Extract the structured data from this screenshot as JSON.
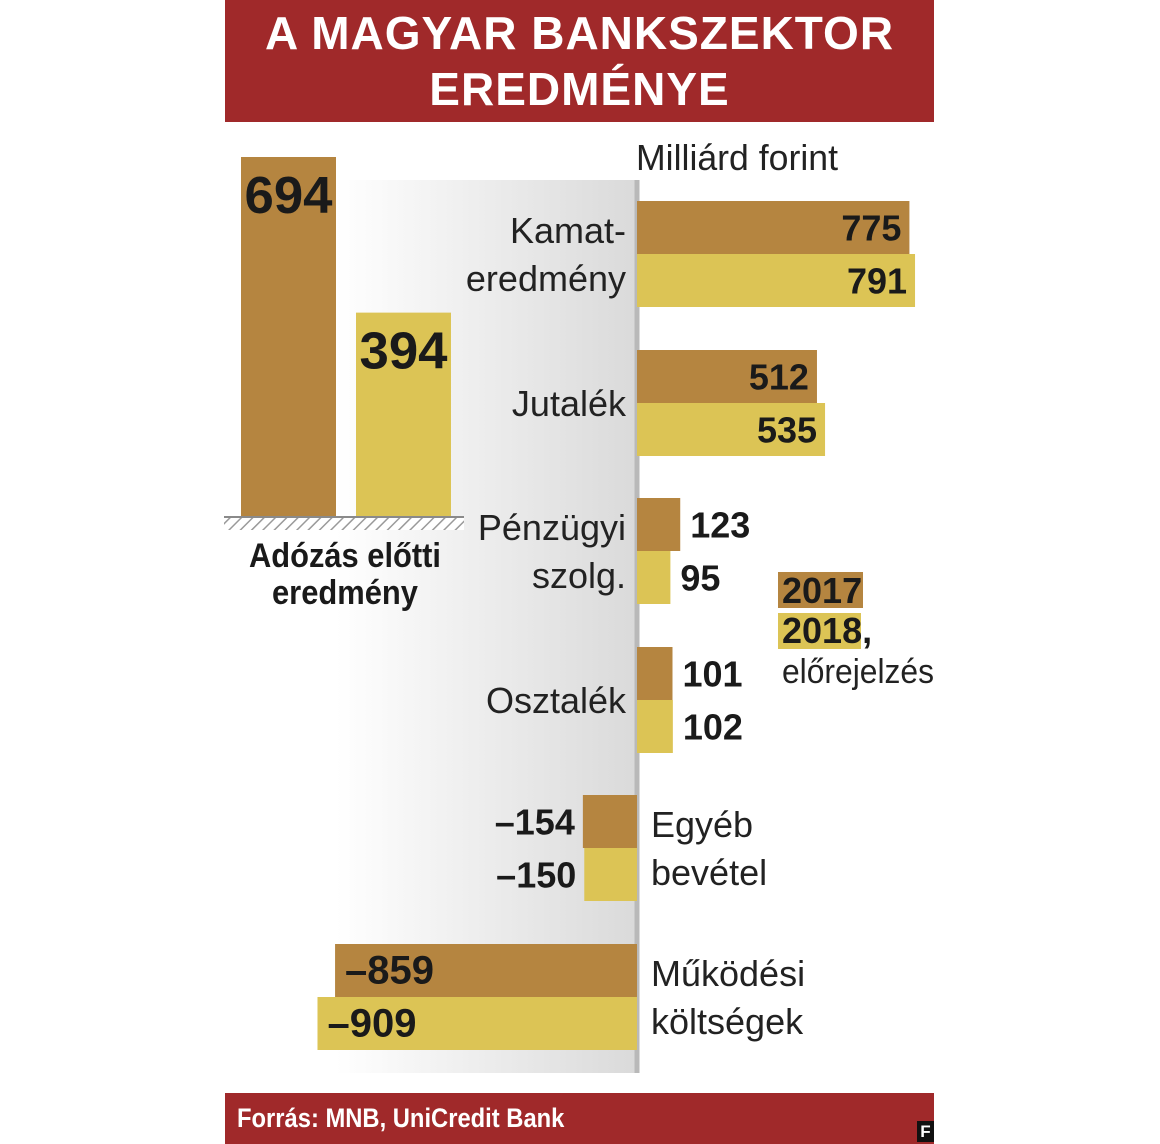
{
  "title_line1": "A MAGYAR BANKSZEKTOR",
  "title_line2": "EREDMÉNYE",
  "unit_label": "Milliárd forint",
  "source": "Forrás: MNB, UniCredit Bank",
  "logo": "F",
  "colors": {
    "y2017": "#b58540",
    "y2018": "#dcc455",
    "banner": "#a0292a"
  },
  "chart_data": [
    {
      "type": "bar",
      "title": "Adózás előtti eredmény",
      "title_lines": [
        "Adózás előtti",
        "eredmény"
      ],
      "categories": [
        "Adózás előtti eredmény"
      ],
      "series": [
        {
          "name": "2017",
          "values": [
            694
          ]
        },
        {
          "name": "2018, előrejelzés",
          "values": [
            394
          ]
        }
      ],
      "value_labels": [
        "694",
        "394"
      ]
    },
    {
      "type": "bar",
      "orientation": "horizontal",
      "unit": "Milliárd forint",
      "categories": [
        "Kamateredmény",
        "Jutalék",
        "Pénzügyi szolg.",
        "Osztalék",
        "Egyéb bevétel",
        "Működési költségek"
      ],
      "category_label_lines": [
        [
          "Kamat-",
          "eredmény"
        ],
        [
          "Jutalék"
        ],
        [
          "Pénzügyi",
          "szolg."
        ],
        [
          "Osztalék"
        ],
        [
          "Egyéb",
          "bevétel"
        ],
        [
          "Működési",
          "költségek"
        ]
      ],
      "series": [
        {
          "name": "2017",
          "values": [
            775,
            512,
            123,
            101,
            -154,
            -859
          ]
        },
        {
          "name": "2018, előrejelzés",
          "values": [
            791,
            535,
            95,
            102,
            -150,
            -909
          ]
        }
      ],
      "value_labels": [
        [
          "775",
          "512",
          "123",
          "101",
          "–154",
          "–859"
        ],
        [
          "791",
          "535",
          "95",
          "102",
          "–150",
          "–909"
        ]
      ],
      "legend": [
        {
          "label": "2017",
          "lines": [
            "2017"
          ]
        },
        {
          "label": "2018, előrejelzés",
          "lines": [
            "2018,",
            "előrejelzés"
          ]
        }
      ],
      "legend_position": "right"
    }
  ]
}
